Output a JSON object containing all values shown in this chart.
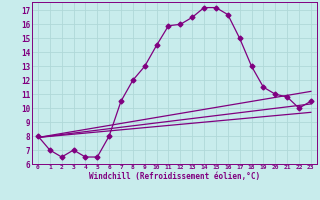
{
  "xlabel": "Windchill (Refroidissement éolien,°C)",
  "bg_color": "#c8ecec",
  "grid_color": "#b0d8d8",
  "line_color": "#800080",
  "xlim": [
    -0.5,
    23.5
  ],
  "ylim": [
    6.0,
    17.6
  ],
  "xticks": [
    0,
    1,
    2,
    3,
    4,
    5,
    6,
    7,
    8,
    9,
    10,
    11,
    12,
    13,
    14,
    15,
    16,
    17,
    18,
    19,
    20,
    21,
    22,
    23
  ],
  "yticks": [
    6,
    7,
    8,
    9,
    10,
    11,
    12,
    13,
    14,
    15,
    16,
    17
  ],
  "curve1_x": [
    0,
    1,
    2,
    3,
    4,
    5,
    6,
    7,
    8,
    9,
    10,
    11,
    12,
    13,
    14,
    15,
    16,
    17,
    18,
    19,
    20,
    21,
    22,
    23
  ],
  "curve1_y": [
    8.0,
    7.0,
    6.5,
    7.0,
    6.5,
    6.5,
    8.0,
    10.5,
    12.0,
    13.0,
    14.5,
    15.9,
    16.0,
    16.5,
    17.2,
    17.2,
    16.7,
    15.0,
    13.0,
    11.5,
    11.0,
    10.8,
    10.0,
    10.5
  ],
  "curve2_x": [
    0,
    23
  ],
  "curve2_y": [
    7.9,
    11.2
  ],
  "curve3_x": [
    0,
    23
  ],
  "curve3_y": [
    7.9,
    10.3
  ],
  "curve4_x": [
    0,
    23
  ],
  "curve4_y": [
    7.9,
    9.7
  ]
}
